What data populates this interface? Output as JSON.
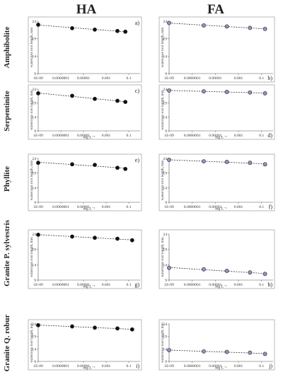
{
  "column_headers": [
    "HA",
    "FA"
  ],
  "row_labels": [
    "Amphibolite",
    "Serpentinite",
    "Phyllite",
    "Granite P. sylvestris",
    "Granite Q. robur"
  ],
  "ylabel": "watercress root length, mm",
  "xlabel": "mg L⁻¹",
  "colors": {
    "filled_marker": "#111111",
    "open_marker": "#8f95bf",
    "line": "#333333",
    "frame": "#9a9a9a"
  },
  "chart_data": [
    {
      "type": "scatter",
      "panel_label": "a)",
      "column": "HA",
      "row": "Amphibolite",
      "marker": "filled",
      "x": [
        1e-09,
        1e-06,
        0.0001,
        0.01,
        0.05
      ],
      "y": [
        23.0,
        22.0,
        21.6,
        21.2,
        21.0
      ],
      "xscale": "log",
      "xlim": [
        1e-09,
        1
      ],
      "ylim": [
        9,
        24
      ],
      "yticks": [
        9,
        14,
        19,
        24
      ],
      "xticks": [
        "1E-09",
        "0.0000001",
        "0.00001",
        "0.001",
        "0.1"
      ],
      "xlabel": "",
      "ylabel": "watercress root length, mm"
    },
    {
      "type": "scatter",
      "panel_label": "b)",
      "column": "FA",
      "row": "Amphibolite",
      "marker": "open",
      "x": [
        1e-09,
        1e-06,
        0.0001,
        0.01,
        0.2
      ],
      "y": [
        23.5,
        22.8,
        22.5,
        22.1,
        21.8
      ],
      "xscale": "log",
      "xlim": [
        1e-09,
        1
      ],
      "ylim": [
        9,
        24
      ],
      "yticks": [
        9,
        14,
        19,
        24
      ],
      "xticks": [
        "1E-09",
        "0.0000001",
        "0.00001",
        "0.001",
        "0.1"
      ],
      "xlabel": "",
      "ylabel": "watercress root length, mm"
    },
    {
      "type": "scatter",
      "panel_label": "c)",
      "column": "HA",
      "row": "Serpentinite",
      "marker": "filled",
      "x": [
        1e-09,
        1e-06,
        0.0001,
        0.01,
        0.05
      ],
      "y": [
        22.5,
        21.6,
        20.5,
        19.8,
        19.4
      ],
      "xscale": "log",
      "xlim": [
        1e-09,
        1
      ],
      "ylim": [
        9,
        24
      ],
      "yticks": [
        9,
        14,
        19,
        24
      ],
      "xticks": [
        "1E-09",
        "0.0000001",
        "0.00001",
        "0.001",
        "0.1"
      ],
      "xlabel": "mg L⁻¹",
      "ylabel": "watercress root length, mm"
    },
    {
      "type": "scatter",
      "panel_label": "d)",
      "column": "FA",
      "row": "Serpentinite",
      "marker": "open",
      "x": [
        1e-09,
        1e-06,
        0.0001,
        0.01,
        0.2
      ],
      "y": [
        23.5,
        23.2,
        23.0,
        22.8,
        22.5
      ],
      "xscale": "log",
      "xlim": [
        1e-09,
        1
      ],
      "ylim": [
        9,
        24
      ],
      "yticks": [
        9,
        14,
        19,
        24
      ],
      "xticks": [
        "1E-09",
        "0.0000001",
        "0.00001",
        "0.001",
        "0.1"
      ],
      "xlabel": "mg L⁻¹",
      "ylabel": "watercress root length, mm"
    },
    {
      "type": "scatter",
      "panel_label": "e)",
      "column": "HA",
      "row": "Phyllite",
      "marker": "filled",
      "x": [
        1e-09,
        1e-06,
        0.0001,
        0.01,
        0.05
      ],
      "y": [
        22.5,
        22.0,
        21.8,
        20.8,
        20.4
      ],
      "xscale": "log",
      "xlim": [
        1e-09,
        1
      ],
      "ylim": [
        9,
        24
      ],
      "yticks": [
        9,
        14,
        19,
        24
      ],
      "xticks": [
        "1E-09",
        "0.0000001",
        "0.00001",
        "0.001",
        "0.1"
      ],
      "xlabel": "mg L⁻¹",
      "ylabel": "watercress root length, mm"
    },
    {
      "type": "scatter",
      "panel_label": "f)",
      "column": "FA",
      "row": "Phyllite",
      "marker": "open",
      "x": [
        1e-09,
        1e-06,
        0.0001,
        0.01,
        0.2
      ],
      "y": [
        23.5,
        23.0,
        22.8,
        22.5,
        22.0
      ],
      "xscale": "log",
      "xlim": [
        1e-09,
        1
      ],
      "ylim": [
        9,
        24
      ],
      "yticks": [
        9,
        14,
        19,
        24
      ],
      "xticks": [
        "1E-09",
        "0.0000001",
        "0.00001",
        "0.001",
        "0.1"
      ],
      "xlabel": "mg L⁻¹",
      "ylabel": "watercress root length, mm"
    },
    {
      "type": "scatter",
      "panel_label": "g)",
      "column": "HA",
      "row": "Granite P. sylvestris",
      "marker": "filled",
      "x": [
        1e-09,
        1e-06,
        0.0001,
        0.01,
        0.2
      ],
      "y": [
        23.8,
        23.2,
        22.8,
        22.5,
        22.0
      ],
      "xscale": "log",
      "xlim": [
        1e-09,
        1
      ],
      "ylim": [
        9,
        24
      ],
      "yticks": [
        9,
        14,
        19,
        24
      ],
      "xticks": [
        "1E-09",
        "0.0000001",
        "0.00001",
        "0.001",
        "0.1"
      ],
      "xlabel": "mg L⁻¹",
      "ylabel": "watercress root length, mm"
    },
    {
      "type": "scatter",
      "panel_label": "h)",
      "column": "FA",
      "row": "Granite P. sylvestris",
      "marker": "open",
      "x": [
        1e-09,
        1e-06,
        0.0001,
        0.01,
        0.2
      ],
      "y": [
        13.0,
        12.5,
        12.0,
        11.5,
        11.0
      ],
      "xscale": "log",
      "xlim": [
        1e-09,
        1
      ],
      "ylim": [
        9,
        24
      ],
      "yticks": [
        9,
        14,
        19,
        24
      ],
      "xticks": [
        "1E-09",
        "0.0000001",
        "0.00001",
        "0.001",
        "0.1"
      ],
      "xlabel": "mg L⁻¹",
      "ylabel": "watercress root length, mm"
    },
    {
      "type": "scatter",
      "panel_label": "i)",
      "column": "HA",
      "row": "Granite Q. robur",
      "marker": "filled",
      "x": [
        1e-09,
        1e-06,
        0.0001,
        0.01,
        0.2
      ],
      "y": [
        23.5,
        23.0,
        22.5,
        22.2,
        21.8
      ],
      "xscale": "log",
      "xlim": [
        1e-09,
        1
      ],
      "ylim": [
        9,
        24
      ],
      "yticks": [
        9,
        14,
        19,
        24
      ],
      "xticks": [
        "1E-09",
        "0.0000001",
        "0.00001",
        "0.001",
        "0.1"
      ],
      "xlabel": "mg L⁻¹",
      "ylabel": "watercress root length, mm"
    },
    {
      "type": "scatter",
      "panel_label": "j)",
      "column": "FA",
      "row": "Granite Q. robur",
      "marker": "open",
      "x": [
        1e-09,
        1e-06,
        0.0001,
        0.01,
        0.2
      ],
      "y": [
        13.5,
        13.0,
        12.8,
        12.5,
        12.0
      ],
      "xscale": "log",
      "xlim": [
        1e-09,
        1
      ],
      "ylim": [
        9,
        24
      ],
      "yticks": [
        9,
        14,
        19,
        24
      ],
      "xticks": [
        "1E-09",
        "0.0000001",
        "0.00001",
        "0.001",
        "0.1"
      ],
      "xlabel": "mg L⁻¹",
      "ylabel": "watercress root length, mm"
    }
  ]
}
